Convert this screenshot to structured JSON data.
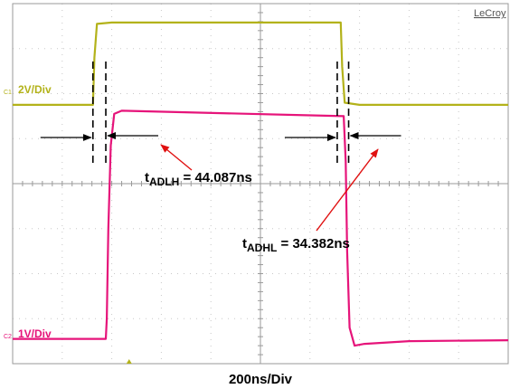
{
  "chart_data": {
    "type": "line",
    "brand": "LeCroy",
    "xlabel": "200ns/Div",
    "grid": true,
    "grid_divisions": {
      "x": 10,
      "y": 8
    },
    "series": [
      {
        "channel_tag": "C1",
        "scale": "2V/Div",
        "color": "#b3b21a",
        "x": [
          0,
          1.62,
          1.65,
          1.7,
          2.0,
          6.5,
          6.62,
          6.65,
          6.7,
          7.0,
          10
        ],
        "y": [
          1.75,
          1.75,
          2.8,
          3.55,
          3.58,
          3.58,
          3.58,
          2.6,
          1.8,
          1.75,
          1.75
        ]
      },
      {
        "channel_tag": "C2",
        "scale": "1V/Div",
        "color": "#e6147a",
        "x": [
          0,
          1.88,
          1.9,
          1.93,
          1.98,
          2.05,
          2.2,
          6.68,
          6.72,
          6.75,
          6.8,
          6.9,
          7.1,
          8.0,
          10
        ],
        "y": [
          -3.45,
          -3.45,
          -3.0,
          -1.0,
          0.85,
          1.55,
          1.62,
          1.5,
          0.5,
          -1.5,
          -3.2,
          -3.6,
          -3.56,
          -3.5,
          -3.48
        ]
      }
    ],
    "markers": {
      "rise": {
        "x_start": 1.62,
        "x_end": 1.88
      },
      "fall": {
        "x_start": 6.55,
        "x_end": 6.78
      }
    },
    "annotations": [
      {
        "name": "rise-delay",
        "sub": "ADLH",
        "value": "44.087ns"
      },
      {
        "name": "fall-delay",
        "sub": "ADHL",
        "value": "34.382ns"
      }
    ]
  }
}
